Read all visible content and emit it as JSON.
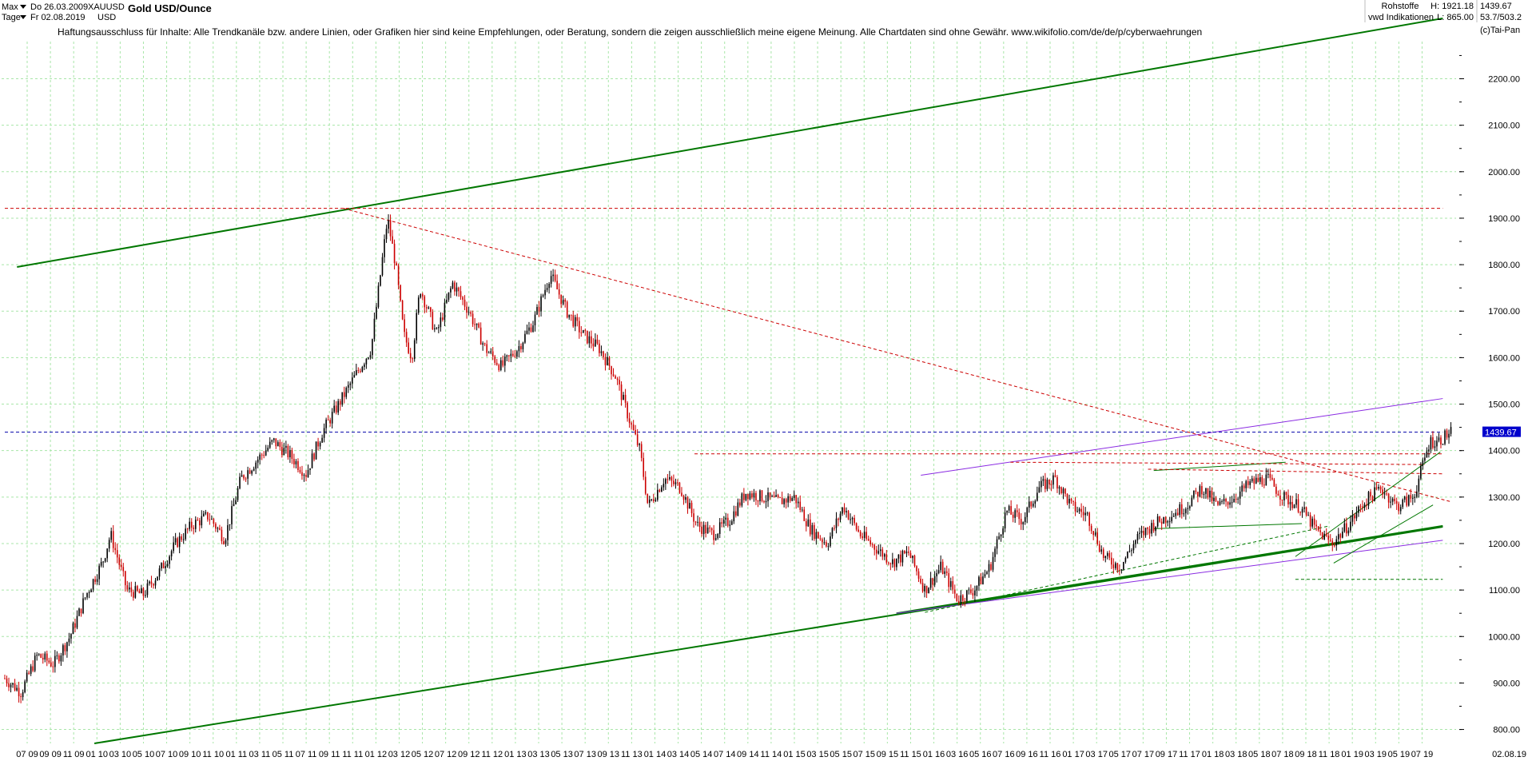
{
  "header": {
    "range_mode": "Max",
    "period_unit": "Tage",
    "start_date": "Do 26.03.2009",
    "end_date": "Fr 02.08.2019",
    "symbol": "XAUUSD",
    "currency": "USD",
    "title": "Gold USD/Ounce",
    "category": "Rohstoffe",
    "source": "vwd Indikationen",
    "high": "H: 1921.18",
    "low": "L: 865.00",
    "last": "1439.67",
    "ratio": "53.7/503.2",
    "copyright": "(c)Tai-Pan",
    "disclaimer": "Haftungsausschluss für Inhalte: Alle Trendkanäle bzw. andere Linien, oder Grafiken hier sind keine Empfehlungen, oder Beratung, sondern die zeigen ausschließlich meine eigene Meinung. Alle Chartdaten sind ohne Gewähr.  www.wikifolio.com/de/de/p/cyberwaehrungen"
  },
  "icons": {
    "range_dropdown": "dropdown-arrow-icon",
    "period_dropdown": "dropdown-arrow-icon"
  },
  "colors": {
    "candle_up": "#000000",
    "candle_down": "#cc0000",
    "trend_green": "#007700",
    "trend_purple": "#8a2be2",
    "ath_line": "#cc0000",
    "last_line": "#0000aa",
    "last_badge": "#0000cc",
    "grid": "#a8e6a8"
  },
  "chart_data": {
    "type": "candlestick",
    "title": "Gold USD/Ounce",
    "ylim": [
      770,
      2280
    ],
    "y_ticks": [
      "800.00",
      "900.00",
      "1000.00",
      "1100.00",
      "1200.00",
      "1300.00",
      "1400.00",
      "1500.00",
      "1600.00",
      "1700.00",
      "1800.00",
      "1900.00",
      "2000.00",
      "2100.00",
      "2200.00"
    ],
    "x_tick_labels": [
      "07 09",
      "09 09",
      "11 09",
      "01 10",
      "03 10",
      "05 10",
      "07 10",
      "09 10",
      "11 10",
      "01 11",
      "03 11",
      "05 11",
      "07 11",
      "09 11",
      "11 11",
      "01 12",
      "03 12",
      "05 12",
      "07 12",
      "09 12",
      "11 12",
      "01 13",
      "03 13",
      "05 13",
      "07 13",
      "09 13",
      "11 13",
      "01 14",
      "03 14",
      "05 14",
      "07 14",
      "09 14",
      "11 14",
      "01 15",
      "03 15",
      "05 15",
      "07 15",
      "09 15",
      "11 15",
      "01 16",
      "03 16",
      "05 16",
      "07 16",
      "09 16",
      "11 16",
      "01 17",
      "03 17",
      "05 17",
      "07 17",
      "09 17",
      "11 17",
      "01 18",
      "03 18",
      "05 18",
      "07 18",
      "09 18",
      "11 18",
      "01 19",
      "03 19",
      "05 19",
      "07 19"
    ],
    "x_end_label": "02.08.19",
    "last_value": 1439.67,
    "all_time_high": 1921.18,
    "all_time_low": 865.0,
    "price_path": [
      [
        0,
        910
      ],
      [
        2,
        880
      ],
      [
        4,
        960
      ],
      [
        6,
        940
      ],
      [
        8,
        1000
      ],
      [
        10,
        1090
      ],
      [
        12,
        1160
      ],
      [
        13,
        1220
      ],
      [
        15,
        1100
      ],
      [
        17,
        1090
      ],
      [
        19,
        1140
      ],
      [
        21,
        1200
      ],
      [
        23,
        1240
      ],
      [
        25,
        1260
      ],
      [
        27,
        1210
      ],
      [
        29,
        1340
      ],
      [
        31,
        1380
      ],
      [
        33,
        1420
      ],
      [
        35,
        1390
      ],
      [
        37,
        1350
      ],
      [
        39,
        1440
      ],
      [
        41,
        1500
      ],
      [
        43,
        1560
      ],
      [
        45,
        1620
      ],
      [
        47,
        1900
      ],
      [
        48,
        1800
      ],
      [
        49,
        1650
      ],
      [
        50,
        1600
      ],
      [
        51,
        1750
      ],
      [
        53,
        1650
      ],
      [
        55,
        1760
      ],
      [
        57,
        1700
      ],
      [
        59,
        1620
      ],
      [
        61,
        1580
      ],
      [
        63,
        1620
      ],
      [
        65,
        1680
      ],
      [
        67,
        1780
      ],
      [
        69,
        1700
      ],
      [
        71,
        1650
      ],
      [
        73,
        1620
      ],
      [
        75,
        1560
      ],
      [
        77,
        1450
      ],
      [
        78,
        1400
      ],
      [
        79,
        1280
      ],
      [
        81,
        1340
      ],
      [
        83,
        1320
      ],
      [
        85,
        1240
      ],
      [
        87,
        1220
      ],
      [
        89,
        1250
      ],
      [
        91,
        1310
      ],
      [
        93,
        1300
      ],
      [
        95,
        1290
      ],
      [
        97,
        1300
      ],
      [
        99,
        1230
      ],
      [
        101,
        1200
      ],
      [
        103,
        1280
      ],
      [
        105,
        1220
      ],
      [
        107,
        1190
      ],
      [
        109,
        1160
      ],
      [
        111,
        1180
      ],
      [
        113,
        1100
      ],
      [
        115,
        1150
      ],
      [
        117,
        1080
      ],
      [
        119,
        1100
      ],
      [
        121,
        1150
      ],
      [
        123,
        1270
      ],
      [
        125,
        1250
      ],
      [
        127,
        1320
      ],
      [
        129,
        1340
      ],
      [
        131,
        1280
      ],
      [
        133,
        1260
      ],
      [
        135,
        1170
      ],
      [
        137,
        1150
      ],
      [
        139,
        1210
      ],
      [
        141,
        1240
      ],
      [
        143,
        1260
      ],
      [
        145,
        1280
      ],
      [
        147,
        1320
      ],
      [
        149,
        1280
      ],
      [
        151,
        1300
      ],
      [
        153,
        1330
      ],
      [
        155,
        1340
      ],
      [
        157,
        1300
      ],
      [
        159,
        1280
      ],
      [
        161,
        1230
      ],
      [
        163,
        1200
      ],
      [
        165,
        1240
      ],
      [
        167,
        1290
      ],
      [
        169,
        1320
      ],
      [
        171,
        1280
      ],
      [
        173,
        1300
      ],
      [
        175,
        1420
      ],
      [
        176,
        1420
      ],
      [
        177.6,
        1440
      ]
    ],
    "overlay_lines": [
      {
        "kind": "channel",
        "color": "trend_green",
        "style": "solid",
        "points": [
          [
            1.5,
            1795
          ],
          [
            176.6,
            2330
          ]
        ]
      },
      {
        "kind": "channel",
        "color": "trend_green",
        "style": "solid",
        "points": [
          [
            11,
            770
          ],
          [
            176.6,
            1236
          ]
        ]
      },
      {
        "kind": "support",
        "color": "trend_green",
        "style": "solid",
        "points": [
          [
            109.5,
            1050
          ],
          [
            176.6,
            1238
          ]
        ]
      },
      {
        "kind": "support",
        "color": "trend_purple",
        "style": "solid",
        "points": [
          [
            109.5,
            1050
          ],
          [
            176.6,
            1207
          ]
        ]
      },
      {
        "kind": "resistance",
        "color": "trend_purple",
        "style": "solid",
        "points": [
          [
            112.5,
            1347
          ],
          [
            176.6,
            1512
          ]
        ]
      },
      {
        "kind": "high-line",
        "color": "ath_line",
        "style": "dashed",
        "points": [
          [
            0,
            1921.18
          ],
          [
            176.6,
            1921.18
          ]
        ]
      },
      {
        "kind": "last-line",
        "color": "last_line",
        "style": "dashed",
        "points": [
          [
            0,
            1439.67
          ],
          [
            176.6,
            1439.67
          ]
        ]
      },
      {
        "kind": "decline",
        "color": "ath_line",
        "style": "dashed",
        "points": [
          [
            41.6,
            1921
          ],
          [
            177.6,
            1290
          ]
        ]
      },
      {
        "kind": "support",
        "color": "trend_green",
        "style": "dashed",
        "points": [
          [
            113,
            1052
          ],
          [
            162.7,
            1238
          ]
        ]
      },
      {
        "kind": "level",
        "color": "trend_green",
        "style": "dashed",
        "points": [
          [
            158.5,
            1123
          ],
          [
            176.6,
            1123
          ]
        ]
      },
      {
        "kind": "wedge",
        "color": "trend_green",
        "style": "solid",
        "points": [
          [
            158.5,
            1172
          ],
          [
            176.3,
            1397
          ]
        ]
      },
      {
        "kind": "wedge",
        "color": "trend_green",
        "style": "solid",
        "points": [
          [
            163.2,
            1158
          ],
          [
            175.4,
            1283
          ]
        ]
      },
      {
        "kind": "range",
        "color": "trend_green",
        "style": "solid",
        "points": [
          [
            141.1,
            1357
          ],
          [
            157.3,
            1375
          ]
        ]
      },
      {
        "kind": "range",
        "color": "trend_green",
        "style": "solid",
        "points": [
          [
            141.1,
            1232
          ],
          [
            159.3,
            1243
          ]
        ]
      },
      {
        "kind": "level",
        "color": "ath_line",
        "style": "dashed",
        "points": [
          [
            84.7,
            1393
          ],
          [
            176.6,
            1393
          ]
        ]
      },
      {
        "kind": "level",
        "color": "ath_line",
        "style": "dashed",
        "points": [
          [
            123.5,
            1375
          ],
          [
            174.4,
            1370
          ]
        ]
      },
      {
        "kind": "level",
        "color": "ath_line",
        "style": "dashed",
        "points": [
          [
            140.4,
            1360
          ],
          [
            176.6,
            1350
          ]
        ]
      }
    ]
  }
}
